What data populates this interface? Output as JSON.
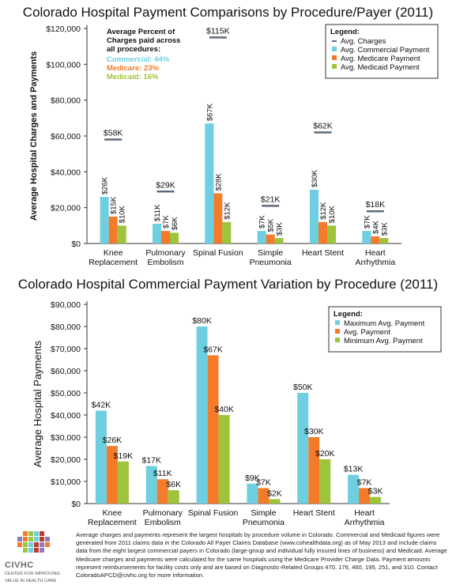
{
  "chart_data": [
    {
      "type": "bar",
      "title": "Colorado Hospital Payment Comparisons by Procedure/Payer (2011)",
      "ylabel": "Average Hospital Charges and Payments",
      "xlabel": "",
      "ylim": [
        0,
        120000
      ],
      "yticks": [
        "$0",
        "$20,000",
        "$40,000",
        "$60,000",
        "$80,000",
        "$100,000",
        "$120,000"
      ],
      "categories": [
        [
          "Knee",
          "Replacement"
        ],
        [
          "Pulmonary",
          "Embolism"
        ],
        [
          "Spinal Fusion"
        ],
        [
          "Simple",
          "Pneumonia"
        ],
        [
          "Heart Stent"
        ],
        [
          "Heart",
          "Arrhythmia"
        ]
      ],
      "series": [
        {
          "name": "Avg. Commercial Payment",
          "color": "#6dcfe0",
          "values": [
            26000,
            11000,
            67000,
            7000,
            30000,
            7000
          ],
          "labels": [
            "$26K",
            "$11K",
            "$67K",
            "$7K",
            "$30K",
            "$7K"
          ]
        },
        {
          "name": "Avg. Medicare Payment",
          "color": "#f47b2a",
          "values": [
            15000,
            7000,
            28000,
            5000,
            12000,
            4000
          ],
          "labels": [
            "$15K",
            "$7K",
            "$28K",
            "$5K",
            "$12K",
            "$4K"
          ]
        },
        {
          "name": "Avg. Medicaid Payment",
          "color": "#9dc43a",
          "values": [
            10000,
            6000,
            12000,
            3000,
            10000,
            3000
          ],
          "labels": [
            "$10K",
            "$6K",
            "$12K",
            "$3K",
            "$10K",
            "$3K"
          ]
        }
      ],
      "charges": {
        "name": "Avg. Charges",
        "color": "#5f6b78",
        "values": [
          58000,
          29000,
          115000,
          21000,
          62000,
          18000
        ],
        "labels": [
          "$58K",
          "$29K",
          "$115K",
          "$21K",
          "$62K",
          "$18K"
        ]
      },
      "legend_title": "Legend:",
      "legend_position": "top-right",
      "annotation": {
        "lines": [
          "Average Percent of",
          "Charges paid across",
          "all procedures:"
        ],
        "items": [
          {
            "text": "Commercial: 44%",
            "color": "#6dcfe0"
          },
          {
            "text": "Medicare: 23%",
            "color": "#f47b2a"
          },
          {
            "text": "Medicaid: 16%",
            "color": "#9dc43a"
          }
        ]
      },
      "grid": false
    },
    {
      "type": "bar",
      "title": "Colorado Hospital Commercial Payment Variation by Procedure (2011)",
      "ylabel": "Average Hospital Payments",
      "xlabel": "",
      "ylim": [
        0,
        90000
      ],
      "yticks": [
        "$0",
        "$10,000",
        "$20,000",
        "$30,000",
        "$40,000",
        "$50,000",
        "$60,000",
        "$70,000",
        "$80,000",
        "$90,000"
      ],
      "categories": [
        [
          "Knee",
          "Replacement"
        ],
        [
          "Pulmonary",
          "Embolism"
        ],
        [
          "Spinal Fusion"
        ],
        [
          "Simple",
          "Pneumonia"
        ],
        [
          "Heart Stent"
        ],
        [
          "Heart",
          "Arrhythmia"
        ]
      ],
      "series": [
        {
          "name": "Maximum Avg. Payment",
          "color": "#6dcfe0",
          "values": [
            42000,
            17000,
            80000,
            9000,
            50000,
            13000
          ],
          "labels": [
            "$42K",
            "$17K",
            "$80K",
            "$9K",
            "$50K",
            "$13K"
          ]
        },
        {
          "name": "Avg. Payment",
          "color": "#f47b2a",
          "values": [
            26000,
            11000,
            67000,
            7000,
            30000,
            7000
          ],
          "labels": [
            "$26K",
            "$11K",
            "$67K",
            "$7K",
            "$30K",
            "$7K"
          ]
        },
        {
          "name": "Minimum Avg. Payment",
          "color": "#9dc43a",
          "values": [
            19000,
            6000,
            40000,
            2000,
            20000,
            3000
          ],
          "labels": [
            "$19K",
            "$6K",
            "$40K",
            "$2K",
            "$20K",
            "$3K"
          ]
        }
      ],
      "legend_title": "Legend:",
      "legend_position": "top-right",
      "grid": false
    }
  ],
  "footer": {
    "text": "Average charges and payments represent the largest hospitals by procedure volume in Colorado. Commercial and Medicaid figures were generated from 2011 claims data in the Colorado All Payer Claims Database (www.cohealthdata.org) as of May 2013 and include claims data from the eight largest commercial payers in Colorado (large-group and individual fully insured lines of business) and Medicaid. Average Medicare charges and payments were calculated for the same hospitals using the Medicare Provider Charge Data. Payment amounts represent reimbursements for facility costs only and are based on Diagnostic-Related Groups 470, 176, 460, 195, 251, and 310. Contact ColoradoAPCD@civhc.org for more information."
  },
  "logo": {
    "name": "CIVHC",
    "caption_line1": "CENTER FOR IMPROVING",
    "caption_line2": "VALUE IN HEALTH CARE",
    "colors": [
      "#f47b2a",
      "#9dc43a",
      "#6dcfe0",
      "#c0392b",
      "#8e7cc3"
    ]
  }
}
